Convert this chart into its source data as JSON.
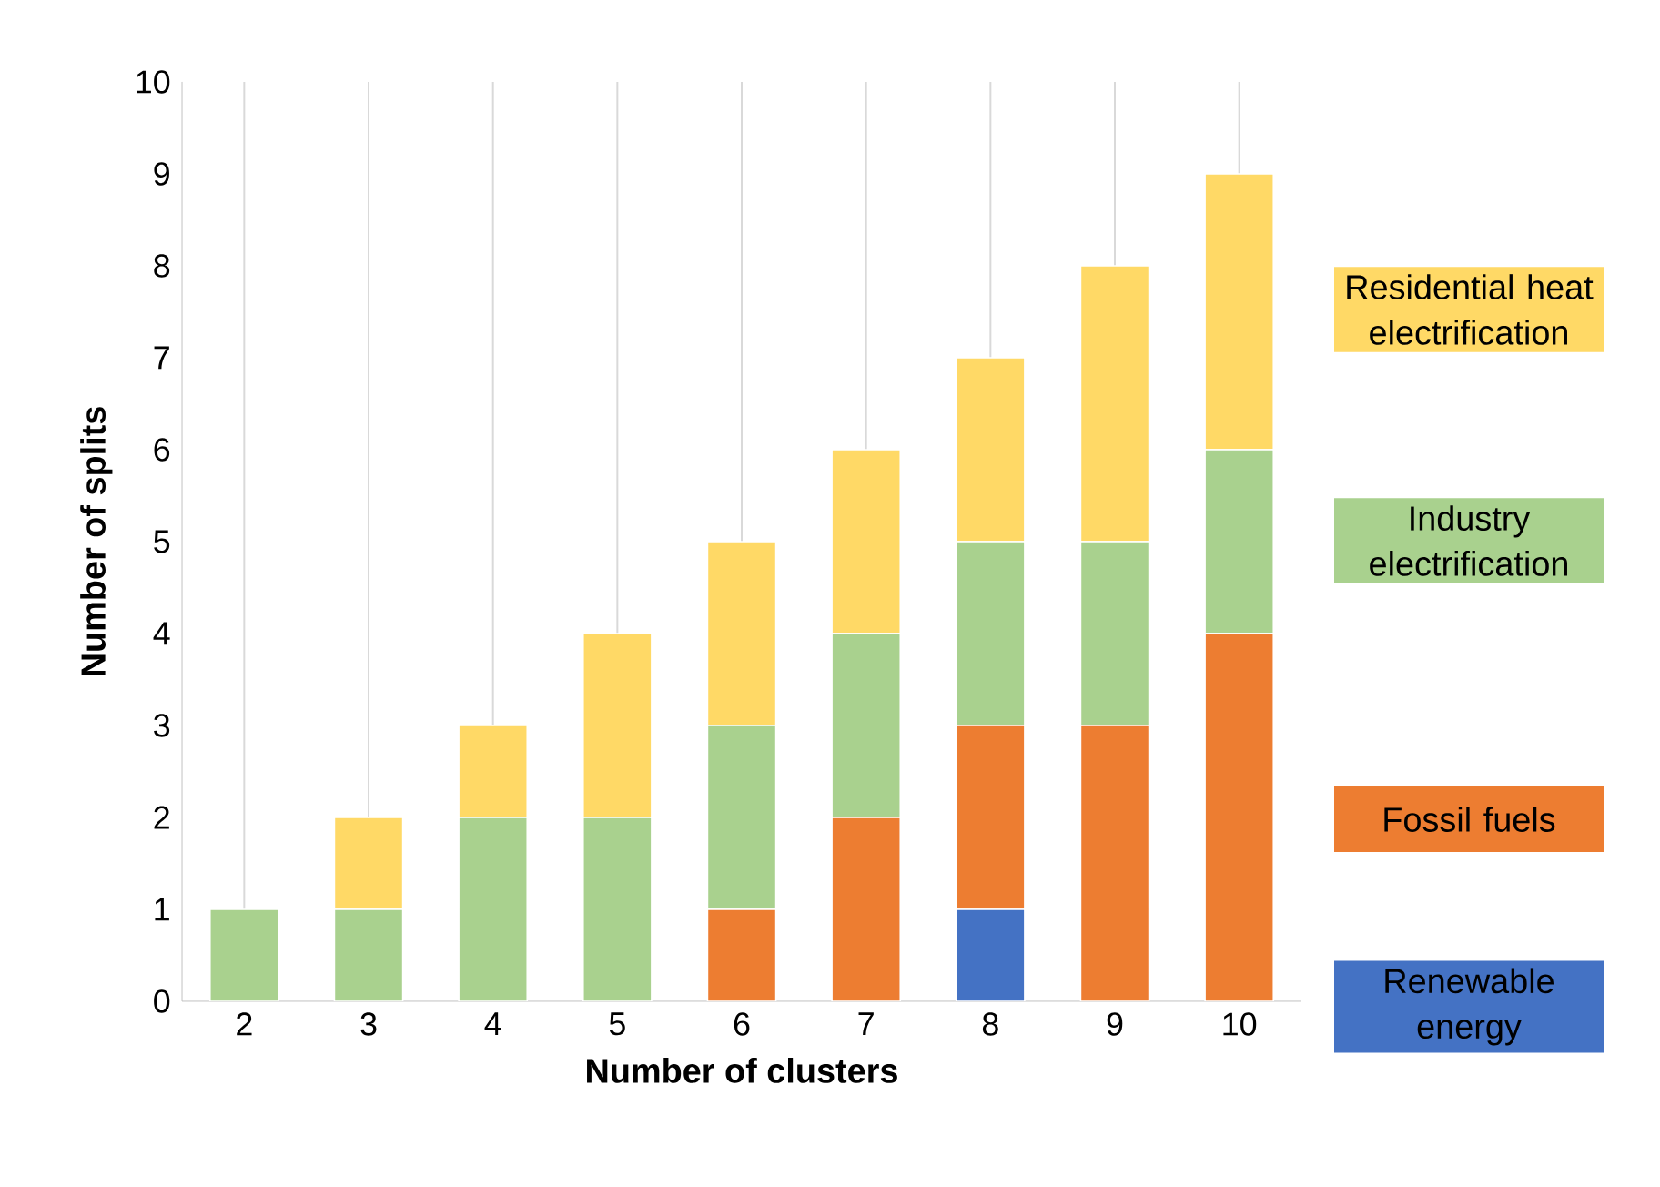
{
  "chart_data": {
    "type": "bar",
    "stacked": true,
    "xlabel": "Number of clusters",
    "ylabel": "Number of splits",
    "categories": [
      "2",
      "3",
      "4",
      "5",
      "6",
      "7",
      "8",
      "9",
      "10"
    ],
    "series": [
      {
        "name": "Renewable energy",
        "color": "#4472c4",
        "values": [
          0,
          0,
          0,
          0,
          0,
          0,
          1,
          0,
          0
        ]
      },
      {
        "name": "Fossil fuels",
        "color": "#ed7d31",
        "values": [
          0,
          0,
          0,
          0,
          1,
          2,
          2,
          3,
          4
        ]
      },
      {
        "name": "Industry electrification",
        "color": "#a9d18e",
        "values": [
          1,
          1,
          2,
          2,
          2,
          2,
          2,
          2,
          2
        ]
      },
      {
        "name": "Residential heat electrification",
        "color": "#ffd966",
        "values": [
          0,
          1,
          1,
          2,
          2,
          2,
          2,
          3,
          3
        ]
      }
    ],
    "ylim": [
      0,
      10
    ],
    "yticks": [
      0,
      1,
      2,
      3,
      4,
      5,
      6,
      7,
      8,
      9,
      10
    ],
    "grid": "x",
    "legend": "right"
  }
}
